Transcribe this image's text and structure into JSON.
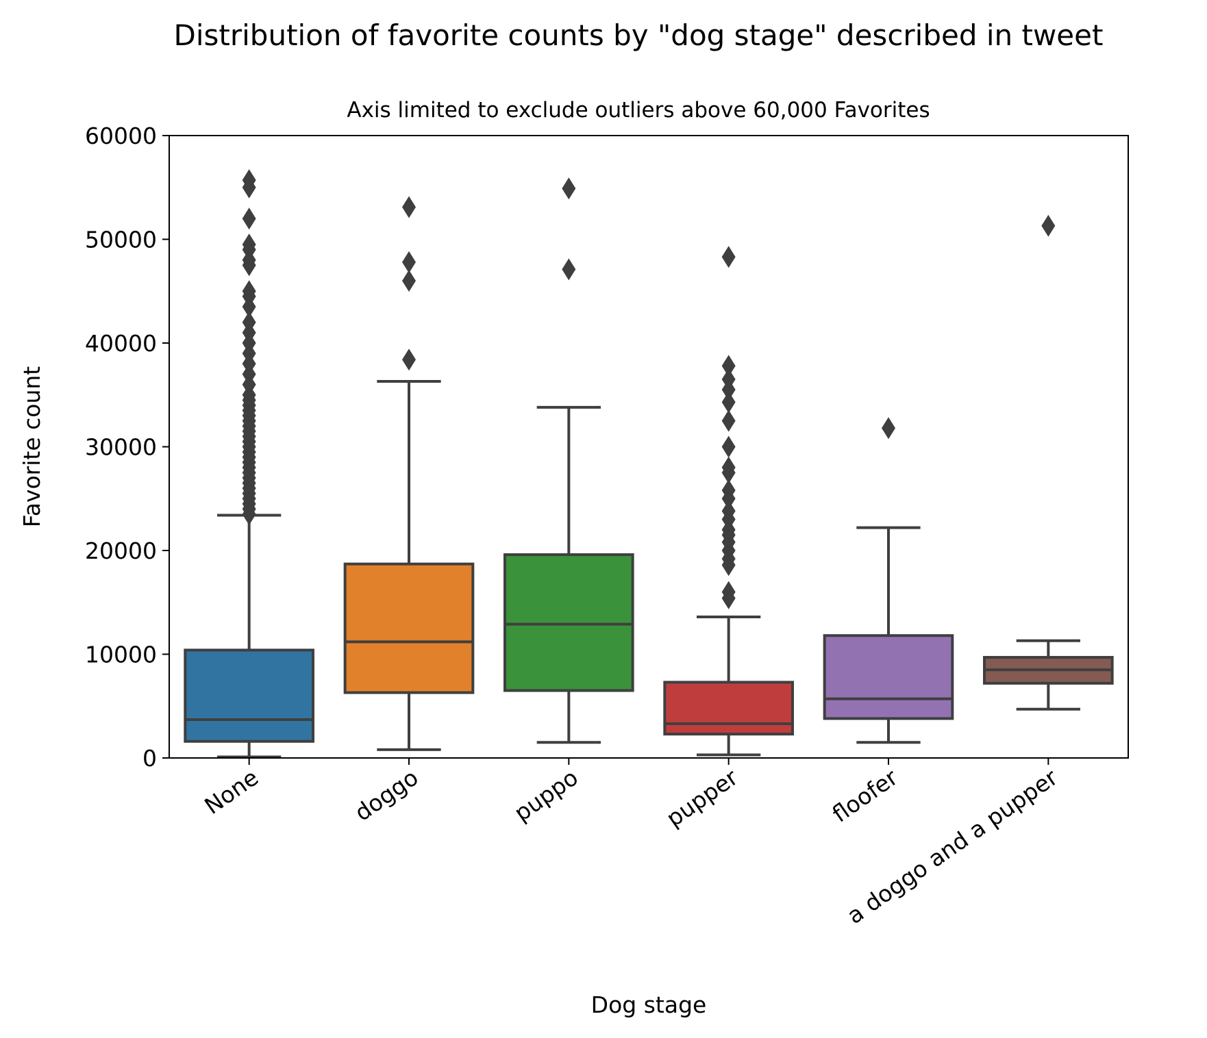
{
  "chart_data": {
    "type": "box",
    "title": "Distribution of favorite counts by \"dog stage\" described in tweet",
    "subtitle": "Axis limited to exclude outliers above 60,000 Favorites",
    "xlabel": "Dog stage",
    "ylabel": "Favorite count",
    "ylim": [
      0,
      60000
    ],
    "yticks": [
      "0",
      "10000",
      "20000",
      "30000",
      "40000",
      "50000",
      "60000"
    ],
    "grid": false,
    "legend": "none",
    "edge_color": "#3f3f3f",
    "categories": [
      "None",
      "doggo",
      "puppo",
      "pupper",
      "floofer",
      "a doggo and a pupper"
    ],
    "series": [
      {
        "category": "None",
        "color": "#3274a1",
        "whisker_low": 100,
        "q1": 1600,
        "median": 3700,
        "q3": 10400,
        "whisker_high": 23400,
        "outliers": [
          23500,
          24000,
          24500,
          25000,
          25500,
          26000,
          26500,
          27000,
          27500,
          28000,
          28500,
          29000,
          29500,
          30000,
          30500,
          31000,
          31500,
          32000,
          32500,
          33000,
          33500,
          34000,
          34500,
          35000,
          36000,
          37000,
          38000,
          39000,
          40000,
          41000,
          42000,
          43500,
          44500,
          45000,
          47500,
          48000,
          49000,
          49500,
          52000,
          55000,
          55700
        ]
      },
      {
        "category": "doggo",
        "color": "#e1812c",
        "whisker_low": 800,
        "q1": 6300,
        "median": 11200,
        "q3": 18700,
        "whisker_high": 36300,
        "outliers": [
          38400,
          46000,
          47800,
          53100
        ]
      },
      {
        "category": "puppo",
        "color": "#3a923a",
        "whisker_low": 1500,
        "q1": 6500,
        "median": 12900,
        "q3": 19600,
        "whisker_high": 33800,
        "outliers": [
          47100,
          54900
        ]
      },
      {
        "category": "pupper",
        "color": "#c03d3e",
        "whisker_low": 300,
        "q1": 2300,
        "median": 3300,
        "q3": 7300,
        "whisker_high": 13600,
        "outliers": [
          15400,
          16000,
          18600,
          19200,
          20000,
          20800,
          21500,
          22000,
          23000,
          23800,
          25000,
          25800,
          27500,
          28000,
          30000,
          32500,
          34300,
          35500,
          36500,
          37800,
          48300
        ]
      },
      {
        "category": "floofer",
        "color": "#9372b2",
        "whisker_low": 1500,
        "q1": 3800,
        "median": 5700,
        "q3": 11800,
        "whisker_high": 22200,
        "outliers": [
          31800
        ]
      },
      {
        "category": "a doggo and a pupper",
        "color": "#845b53",
        "whisker_low": 4700,
        "q1": 7200,
        "median": 8500,
        "q3": 9700,
        "whisker_high": 11300,
        "outliers": [
          51300
        ]
      }
    ]
  }
}
